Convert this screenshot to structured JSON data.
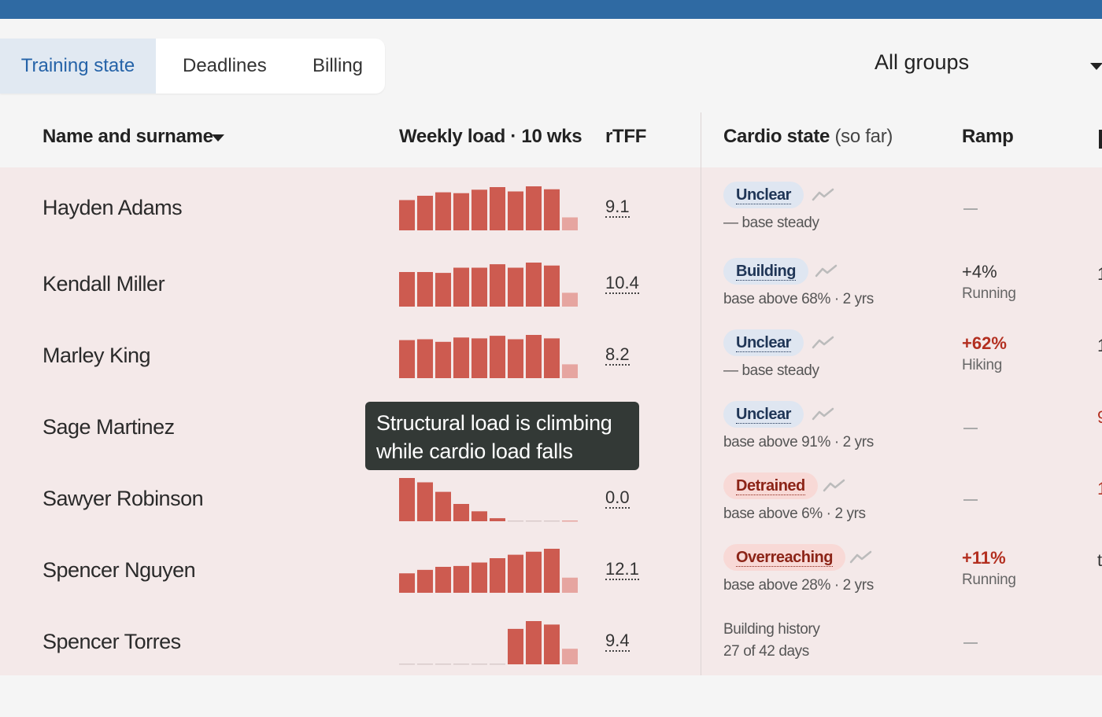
{
  "tabs": [
    {
      "label": "Training state",
      "active": true
    },
    {
      "label": "Deadlines",
      "active": false
    },
    {
      "label": "Billing",
      "active": false
    }
  ],
  "group_filter": {
    "selected": "All groups"
  },
  "columns": {
    "name": "Name and surname",
    "weekly_load": "Weekly load · 10 wks",
    "rtff": "rTFF",
    "cardio_bold": "Cardio state",
    "cardio_light": "(so far)",
    "ramp": "Ramp"
  },
  "colors": {
    "bar": "#cd5b50",
    "bar_current": "#e6a5a0",
    "bar_empty": "#d9cbcb",
    "trend_icon": "#bbbbbb",
    "accent_blue": "#2563a8",
    "warning_red": "#b32f20"
  },
  "rows": [
    {
      "name": "Hayden Adams",
      "rtff": "9.1",
      "weekly_load": [
        0.7,
        0.8,
        0.88,
        0.86,
        0.94,
        1.0,
        0.9,
        1.04,
        0.95,
        0.3
      ],
      "status": {
        "label": "Unclear",
        "tone": "blue",
        "sub": "— base steady",
        "trend_icon": "trend-icon"
      },
      "ramp": null,
      "edge": ""
    },
    {
      "name": "Kendall Miller",
      "rtff": "10.4",
      "weekly_load": [
        0.8,
        0.8,
        0.78,
        0.9,
        0.9,
        0.98,
        0.9,
        1.04,
        0.95,
        0.32
      ],
      "status": {
        "label": "Building",
        "tone": "blue",
        "sub": "base above 68% · 2 yrs",
        "trend_icon": "trend-icon"
      },
      "ramp": {
        "value": "+4%",
        "sport": "Running",
        "emphasis": false
      },
      "edge": "1"
    },
    {
      "name": "Marley King",
      "rtff": "8.2",
      "weekly_load": [
        0.88,
        0.9,
        0.84,
        0.94,
        0.92,
        0.98,
        0.9,
        1.0,
        0.92,
        0.32
      ],
      "status": {
        "label": "Unclear",
        "tone": "blue",
        "sub": "— base steady",
        "trend_icon": "trend-icon"
      },
      "ramp": {
        "value": "+62%",
        "sport": "Hiking",
        "emphasis": true
      },
      "edge": "1"
    },
    {
      "name": "Sage Martinez",
      "rtff": "",
      "weekly_load": [],
      "status": {
        "label": "Unclear",
        "tone": "blue",
        "sub": "base above 91% · 2 yrs",
        "trend_icon": "trend-icon"
      },
      "ramp": null,
      "edge": "9"
    },
    {
      "name": "Sawyer Robinson",
      "rtff": "0.0",
      "weekly_load": [
        1.0,
        0.9,
        0.68,
        0.4,
        0.23,
        0.07,
        0,
        0,
        0,
        0
      ],
      "status": {
        "label": "Detrained",
        "tone": "red",
        "sub": "base above 6% · 2 yrs",
        "trend_icon": "trend-icon"
      },
      "ramp": null,
      "edge": "1"
    },
    {
      "name": "Spencer Nguyen",
      "rtff": "12.1",
      "weekly_load": [
        0.45,
        0.53,
        0.6,
        0.62,
        0.7,
        0.8,
        0.88,
        0.95,
        1.02,
        0.35
      ],
      "status": {
        "label": "Overreaching",
        "tone": "red",
        "sub": "base above 28% · 2 yrs",
        "trend_icon": "trend-icon"
      },
      "ramp": {
        "value": "+11%",
        "sport": "Running",
        "emphasis": true
      },
      "edge": "t"
    },
    {
      "name": "Spencer Torres",
      "rtff": "9.4",
      "weekly_load": [
        0,
        0,
        0,
        0,
        0,
        0,
        0.82,
        1.0,
        0.92,
        0.36
      ],
      "status": {
        "label": "",
        "tone": "none",
        "sub": "",
        "plain_line1": "Building history",
        "plain_line2": "27 of 42 days"
      },
      "ramp": null,
      "edge": ""
    }
  ],
  "tooltip": {
    "line1": "Structural load is climbing",
    "line2": "while cardio load falls"
  }
}
